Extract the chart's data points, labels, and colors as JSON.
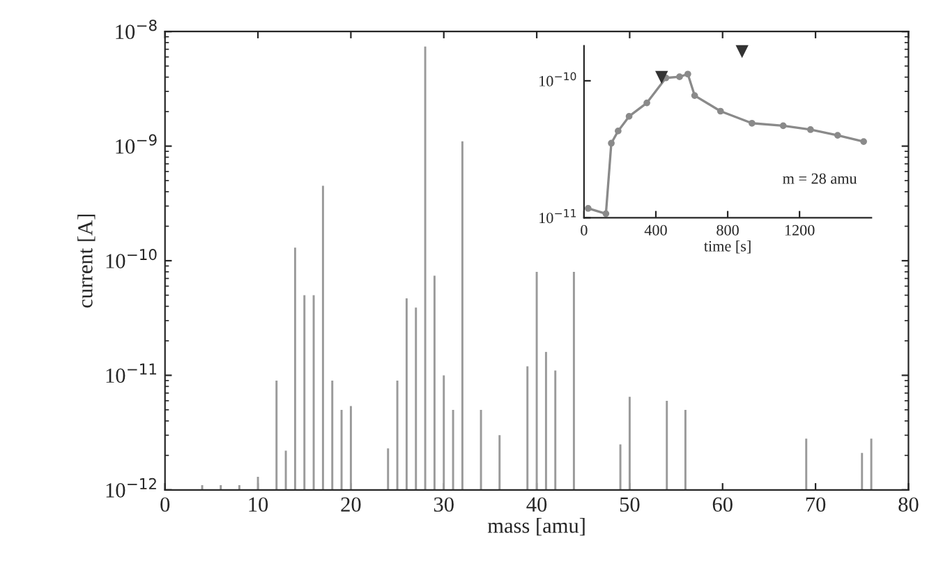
{
  "chart_data": [
    {
      "type": "bar",
      "xlabel": "mass [amu]",
      "ylabel": "current [A]",
      "log": "y",
      "color": "#9a9a9a",
      "x": [
        4,
        6,
        8,
        10,
        12,
        13,
        14,
        15,
        16,
        17,
        18,
        19,
        20,
        24,
        25,
        26,
        27,
        28,
        29,
        30,
        31,
        32,
        34,
        36,
        39,
        40,
        41,
        42,
        44,
        49,
        50,
        54,
        56,
        69,
        75,
        76
      ],
      "values": [
        1.1e-12,
        1.1e-12,
        1.1e-12,
        1.3e-12,
        9e-12,
        2.2e-12,
        1.3e-10,
        5e-11,
        5e-11,
        4.5e-10,
        9e-12,
        5e-12,
        5.4e-12,
        2.3e-12,
        9e-12,
        4.7e-11,
        3.9e-11,
        7.4e-09,
        7.4e-11,
        1e-11,
        5e-12,
        1.1e-09,
        5e-12,
        3e-12,
        1.2e-11,
        8e-11,
        1.6e-11,
        1.1e-11,
        8e-11,
        2.5e-12,
        6.5e-12,
        6e-12,
        5e-12,
        2.8e-12,
        2.1e-12,
        2.8e-12
      ],
      "xlim": [
        0,
        80
      ],
      "xticks": [
        0,
        10,
        20,
        30,
        40,
        50,
        60,
        70,
        80
      ],
      "ylim": [
        1e-12,
        1e-08
      ],
      "yticks": [
        {
          "value": 1e-12,
          "label": "10$^{−12}$"
        },
        {
          "value": 1e-11,
          "label": "10$^{−11}$"
        },
        {
          "value": 1e-10,
          "label": "10$^{−10}$"
        },
        {
          "value": 1e-09,
          "label": "10$^{−9}$"
        },
        {
          "value": 1e-08,
          "label": "10$^{−8}$"
        }
      ]
    },
    {
      "type": "line",
      "xlabel": "time [s]",
      "log": "y",
      "marker": "circle",
      "color": "#8a8a8a",
      "annotations": [
        "m = 28 amu"
      ],
      "x": [
        23,
        122,
        152,
        190,
        251,
        350,
        456,
        532,
        578,
        616,
        760,
        935,
        1109,
        1261,
        1412,
        1557
      ],
      "values": [
        1.17e-11,
        1.07e-11,
        3.5e-11,
        4.3e-11,
        5.5e-11,
        6.9e-11,
        1.05e-10,
        1.07e-10,
        1.12e-10,
        7.8e-11,
        6e-11,
        4.9e-11,
        4.7e-11,
        4.4e-11,
        4e-11,
        3.6e-11
      ],
      "xlim": [
        0,
        1600
      ],
      "xticks": [
        0,
        400,
        800,
        1200
      ],
      "ylim": [
        1e-11,
        1.8e-10
      ],
      "yticks": [
        {
          "value": 1e-11,
          "label": "10$^{−11}$"
        },
        {
          "value": 1e-10,
          "label": "10$^{−10}$"
        }
      ]
    }
  ]
}
